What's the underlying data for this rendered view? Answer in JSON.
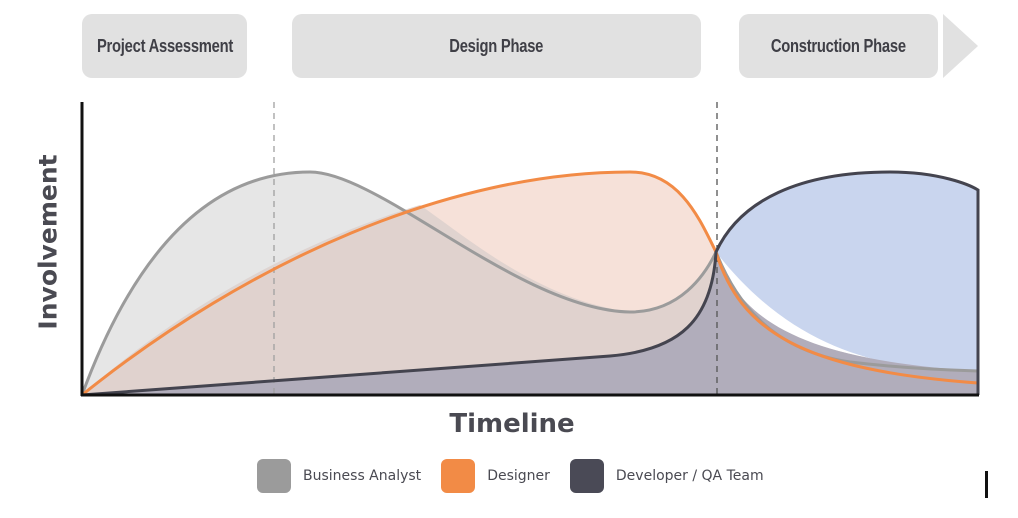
{
  "phases": [
    {
      "label": "Project Assessment"
    },
    {
      "label": "Design Phase"
    },
    {
      "label": "Construction Phase"
    }
  ],
  "axes": {
    "ylabel": "Involvement",
    "xlabel": "Timeline"
  },
  "legend": [
    {
      "label": "Business Analyst",
      "color": "#9b9b9b"
    },
    {
      "label": "Designer",
      "color": "#f28b46"
    },
    {
      "label": "Developer / QA Team",
      "color": "#4a4a56"
    }
  ],
  "colors": {
    "ba_fill": "#e6e6e6",
    "ba_line": "#9b9b9b",
    "designer_fill": "#f4dcd2",
    "designer_line": "#f28b46",
    "dev_fill": "#b1adbb",
    "dev_line": "#44444f",
    "construction_fill": "#c9d5ee"
  }
}
